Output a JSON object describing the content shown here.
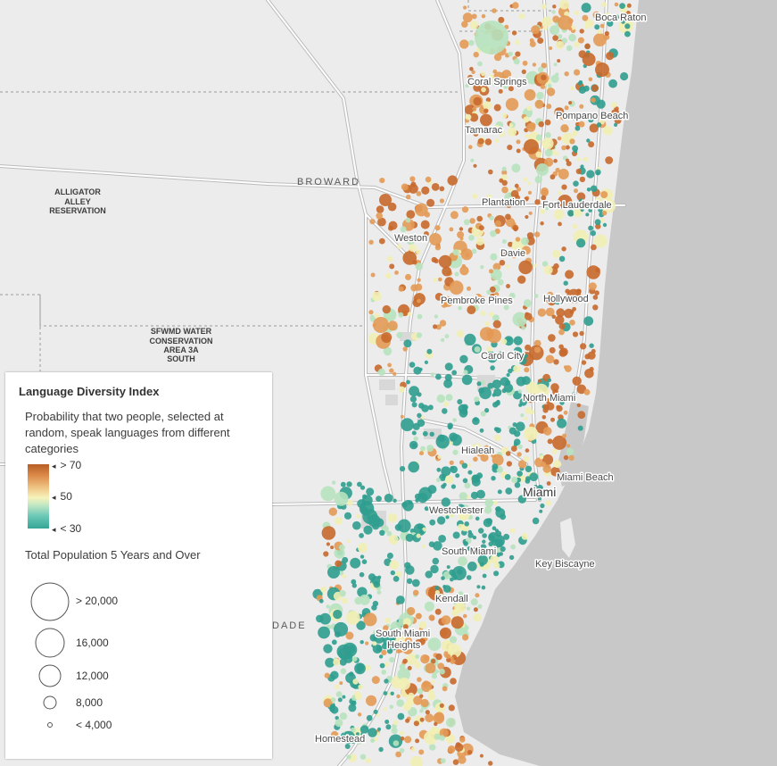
{
  "map": {
    "region_labels": [
      {
        "id": "broward",
        "text": "BROWARD"
      },
      {
        "id": "dade",
        "text": "DADE"
      }
    ],
    "area_labels": [
      {
        "id": "alligator-alley",
        "lines": [
          "ALLIGATOR",
          "ALLEY",
          "RESERVATION"
        ]
      },
      {
        "id": "sfwmd",
        "lines": [
          "SFWMD WATER",
          "CONSERVATION",
          "AREA 3A",
          "SOUTH"
        ]
      }
    ],
    "cities": [
      "Boca Raton",
      "Coral Springs",
      "Pompano Beach",
      "Tamarac",
      "Plantation",
      "Fort Lauderdale",
      "Weston",
      "Davie",
      "Pembroke Pines",
      "Hollywood",
      "Carol City",
      "North Miami",
      "Hialeah",
      "Miami Beach",
      "Miami",
      "Westchester",
      "South Miami",
      "Key Biscayne",
      "Kendall",
      "South Miami Heights",
      "Homestead"
    ]
  },
  "legend": {
    "title": "Language Diversity Index",
    "description": "Probability that two people, selected at random, speak languages from different categories",
    "color_stops": [
      {
        "label": "> 70",
        "color": "#b85e26"
      },
      {
        "label": "50",
        "color": "#f6f3bb"
      },
      {
        "label": "< 30",
        "color": "#35a595"
      }
    ],
    "size_title": "Total Population 5 Years and Over",
    "size_stops": [
      {
        "label": "> 20,000"
      },
      {
        "label": "16,000"
      },
      {
        "label": "12,000"
      },
      {
        "label": "8,000"
      },
      {
        "label": "< 4,000"
      }
    ]
  },
  "colors": {
    "land": "#ececec",
    "water": "#c8c8c8",
    "road": "#ffffff",
    "road_outline": "#bdbdbd",
    "high": "#c8692c",
    "mid_high": "#e39a55",
    "mid": "#f2efb4",
    "mid_low": "#b7e3bf",
    "low": "#2f9d8f"
  }
}
